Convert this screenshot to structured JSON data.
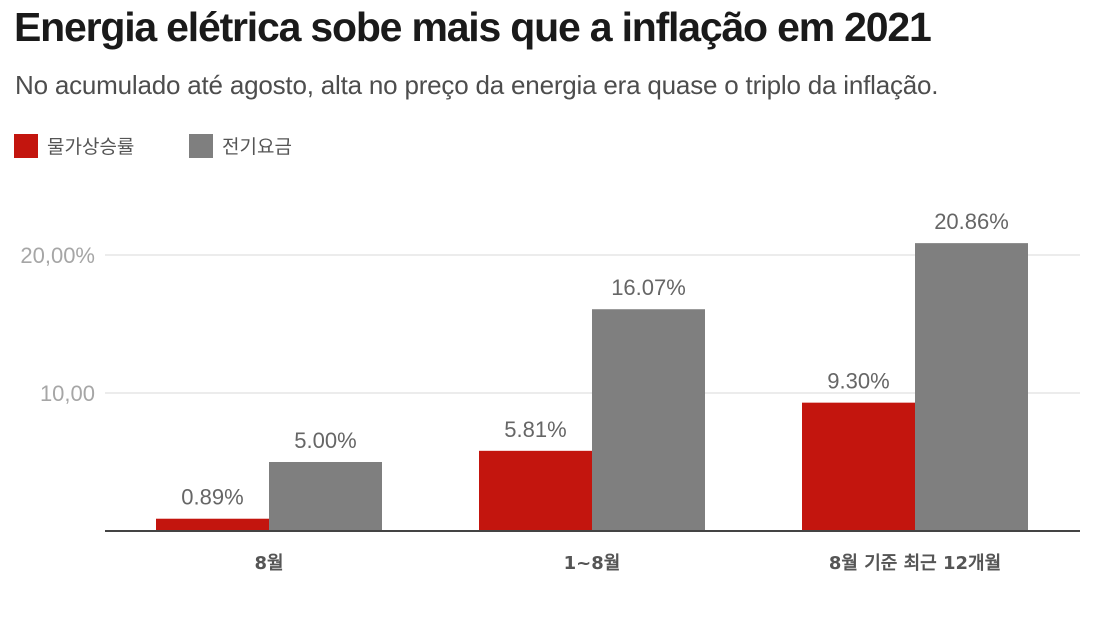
{
  "header": {
    "title": "Energia elétrica sobe mais que a inflação em 2021",
    "subtitle": "No acumulado até agosto, alta no preço da energia era quase o triplo da inflação."
  },
  "chart_data": {
    "type": "bar",
    "categories": [
      "8월",
      "1~8월",
      "8월 기준 최근 12개월"
    ],
    "series": [
      {
        "name": "물가상승률",
        "color": "#c3150e",
        "values": [
          0.89,
          5.81,
          9.3
        ],
        "labels": [
          "0.89%",
          "5.81%",
          "9.30%"
        ]
      },
      {
        "name": "전기요금",
        "color": "#7f7f7f",
        "values": [
          5.0,
          16.07,
          20.86
        ],
        "labels": [
          "5.00%",
          "16.07%",
          "20.86%"
        ]
      }
    ],
    "yticks": [
      {
        "value": 10,
        "label": "10,00"
      },
      {
        "value": 20,
        "label": "20,00%"
      }
    ],
    "ylim": [
      0,
      20
    ],
    "grid": true,
    "legend": "top-left"
  }
}
